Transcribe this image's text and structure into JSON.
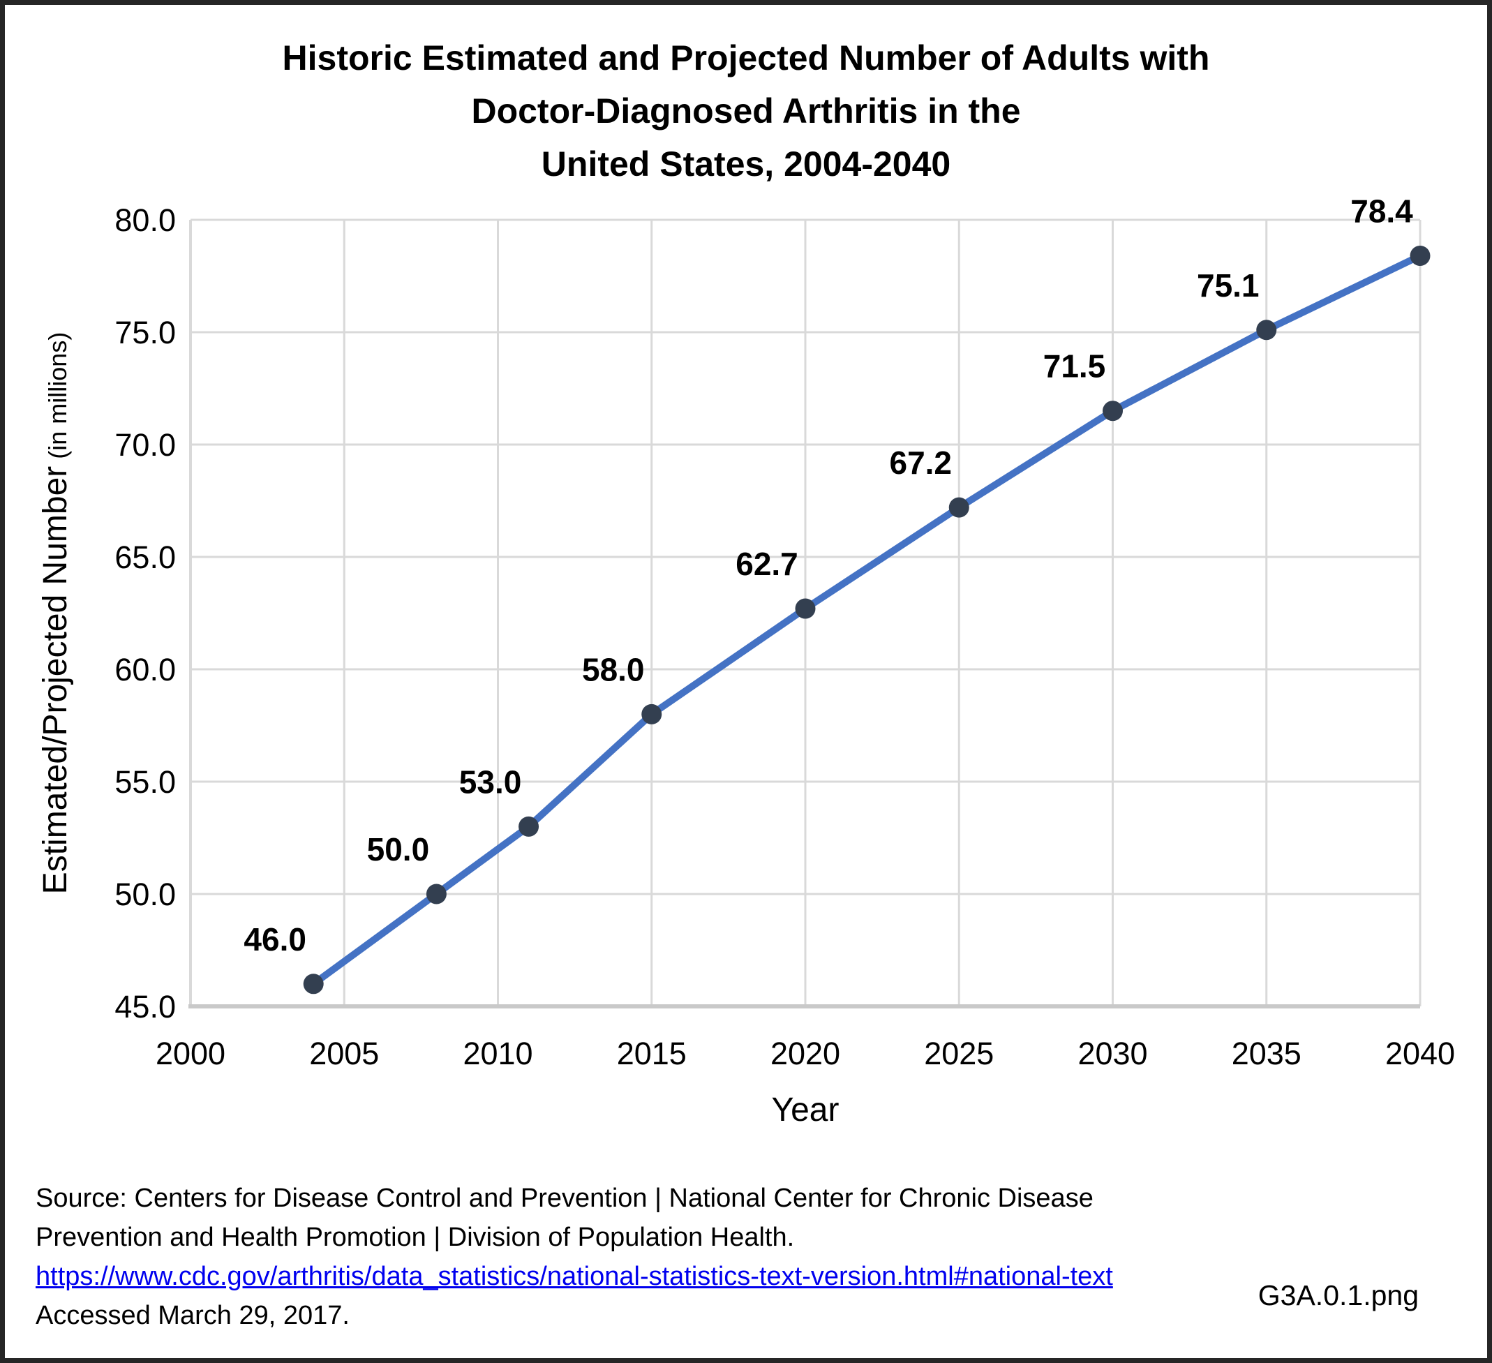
{
  "figure": {
    "title": "Historic Estimated and Projected Number of Adults with\nDoctor-Diagnosed Arthritis in the\nUnited States, 2004-2040",
    "filename_label": "G3A.0.1.png"
  },
  "footer": {
    "source_line_1": "Source: Centers for Disease Control and Prevention | National Center for Chronic Disease",
    "source_line_2": "Prevention and Health Promotion | Division of Population Health.",
    "link_text": "https://www.cdc.gov/arthritis/data_statistics/national-statistics-text-version.html#national-text",
    "accessed_text": "Accessed March 29, 2017."
  },
  "chart_data": {
    "type": "line",
    "title": "Historic Estimated and Projected Number of Adults with Doctor-Diagnosed Arthritis in the United States, 2004-2040",
    "xlabel": "Year",
    "ylabel": "Estimated/Projected Number",
    "ylabel_note": "(in millions)",
    "xlim": [
      2000,
      2040
    ],
    "ylim": [
      45.0,
      80.0
    ],
    "x_ticks": [
      "2000",
      "2005",
      "2010",
      "2015",
      "2020",
      "2025",
      "2030",
      "2035",
      "2040"
    ],
    "y_ticks": [
      "45.0",
      "50.0",
      "55.0",
      "60.0",
      "65.0",
      "70.0",
      "75.0",
      "80.0"
    ],
    "grid": true,
    "legend": false,
    "series": [
      {
        "x": [
          2004,
          2008,
          2011,
          2015,
          2020,
          2025,
          2030,
          2035,
          2040
        ],
        "y": [
          46.0,
          50.0,
          53.0,
          58.0,
          62.7,
          67.2,
          71.5,
          75.1,
          78.4
        ],
        "point_labels": [
          "46.0",
          "50.0",
          "53.0",
          "58.0",
          "62.7",
          "67.2",
          "71.5",
          "75.1",
          "78.4"
        ]
      }
    ],
    "colors": {
      "line": "#4472C4",
      "marker": "#333F50",
      "gridline": "#D9D9D9",
      "axis_line": "#C9C9C9",
      "text": "#000000",
      "link": "#0000EE",
      "frame_border": "#262626"
    }
  }
}
